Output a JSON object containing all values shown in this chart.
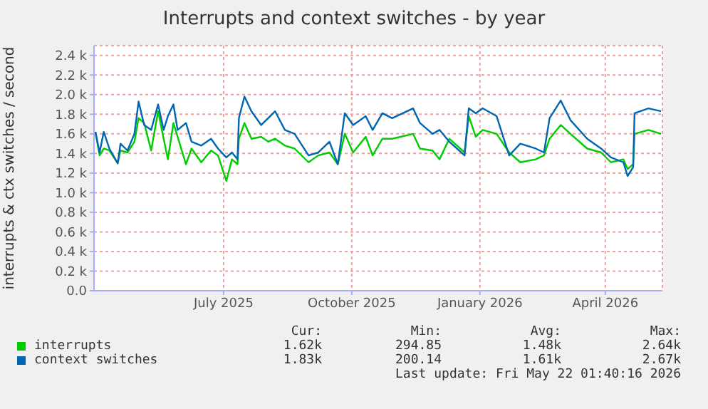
{
  "chart_data": {
    "type": "line",
    "title": "Interrupts and context switches - by year",
    "ylabel": "interrupts & ctx switches / second",
    "xlim": [
      "2025-03-30",
      "2026-05-12"
    ],
    "xticks": [
      {
        "value": "2025-07-01",
        "label": "July 2025"
      },
      {
        "value": "2025-10-01",
        "label": "October 2025"
      },
      {
        "value": "2026-01-01",
        "label": "January 2026"
      },
      {
        "value": "2026-04-01",
        "label": "April 2026"
      }
    ],
    "ylim": [
      0,
      2500
    ],
    "yticks": [
      {
        "value": 0,
        "label": "0.0"
      },
      {
        "value": 200,
        "label": "0.2 k"
      },
      {
        "value": 400,
        "label": "0.4 k"
      },
      {
        "value": 600,
        "label": "0.6 k"
      },
      {
        "value": 800,
        "label": "0.8 k"
      },
      {
        "value": 1000,
        "label": "1.0 k"
      },
      {
        "value": 1200,
        "label": "1.2 k"
      },
      {
        "value": 1400,
        "label": "1.4 k"
      },
      {
        "value": 1600,
        "label": "1.6 k"
      },
      {
        "value": 1800,
        "label": "1.8 k"
      },
      {
        "value": 2000,
        "label": "2.0 k"
      },
      {
        "value": 2200,
        "label": "2.2 k"
      },
      {
        "value": 2400,
        "label": "2.4 k"
      }
    ],
    "x": [
      "2025-03-31",
      "2025-04-03",
      "2025-04-06",
      "2025-04-10",
      "2025-04-16",
      "2025-04-18",
      "2025-04-23",
      "2025-04-28",
      "2025-05-01",
      "2025-05-05",
      "2025-05-10",
      "2025-05-15",
      "2025-05-19",
      "2025-05-22",
      "2025-05-26",
      "2025-05-29",
      "2025-06-04",
      "2025-06-08",
      "2025-06-15",
      "2025-06-22",
      "2025-06-27",
      "2025-07-03",
      "2025-07-07",
      "2025-07-11",
      "2025-07-12",
      "2025-07-16",
      "2025-07-21",
      "2025-07-28",
      "2025-08-02",
      "2025-08-07",
      "2025-08-14",
      "2025-08-21",
      "2025-08-31",
      "2025-09-07",
      "2025-09-15",
      "2025-09-21",
      "2025-09-26",
      "2025-10-02",
      "2025-10-11",
      "2025-10-16",
      "2025-10-23",
      "2025-10-30",
      "2025-11-14",
      "2025-11-19",
      "2025-11-28",
      "2025-12-03",
      "2025-12-10",
      "2025-12-21",
      "2025-12-24",
      "2025-12-29",
      "2026-01-03",
      "2026-01-13",
      "2026-01-22",
      "2026-01-30",
      "2026-02-10",
      "2026-02-16",
      "2026-02-20",
      "2026-02-28",
      "2026-03-07",
      "2026-03-19",
      "2026-03-29",
      "2026-04-05",
      "2026-04-14",
      "2026-04-17",
      "2026-04-21",
      "2026-04-22",
      "2026-05-02",
      "2026-05-11"
    ],
    "series": [
      {
        "name": "interrupts",
        "color": "#00cc00",
        "values": [
          1620,
          1380,
          1450,
          1430,
          1300,
          1430,
          1410,
          1520,
          1760,
          1710,
          1430,
          1830,
          1550,
          1340,
          1710,
          1570,
          1290,
          1450,
          1310,
          1430,
          1380,
          1120,
          1340,
          1290,
          1550,
          1710,
          1550,
          1570,
          1520,
          1550,
          1480,
          1450,
          1310,
          1380,
          1410,
          1290,
          1600,
          1410,
          1570,
          1380,
          1550,
          1550,
          1600,
          1450,
          1430,
          1340,
          1550,
          1410,
          1780,
          1570,
          1640,
          1600,
          1410,
          1310,
          1340,
          1380,
          1550,
          1690,
          1600,
          1450,
          1410,
          1310,
          1340,
          1240,
          1290,
          1600,
          1640,
          1600
        ]
      },
      {
        "name": "context switches",
        "color": "#0066b3",
        "values": [
          1620,
          1410,
          1620,
          1450,
          1300,
          1500,
          1430,
          1600,
          1930,
          1690,
          1640,
          1900,
          1640,
          1780,
          1900,
          1640,
          1710,
          1520,
          1480,
          1550,
          1450,
          1360,
          1410,
          1340,
          1760,
          1980,
          1830,
          1690,
          1760,
          1830,
          1640,
          1600,
          1380,
          1410,
          1520,
          1290,
          1810,
          1690,
          1780,
          1640,
          1810,
          1760,
          1860,
          1710,
          1600,
          1640,
          1520,
          1380,
          1860,
          1810,
          1860,
          1780,
          1380,
          1500,
          1450,
          1410,
          1760,
          1940,
          1740,
          1550,
          1450,
          1360,
          1310,
          1170,
          1260,
          1810,
          1860,
          1830
        ]
      }
    ],
    "grid": true,
    "legend": "bottom",
    "marker": "none",
    "line_style": "solid",
    "annotations": [
      "Cur:",
      "Min:",
      "Avg:",
      "Max:",
      "1.62k",
      "294.85",
      "1.48k",
      "2.64k",
      "1.83k",
      "200.14",
      "1.61k",
      "2.67k",
      "Last update: Fri May 22 01:40:16 2026"
    ]
  }
}
